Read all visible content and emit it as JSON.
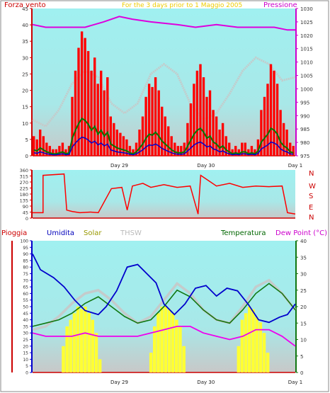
{
  "header": {
    "left_label": "Forza vento",
    "title": "For the 3 days prior to 1 Maggio 2005",
    "right_label": "Pressione"
  },
  "lower_header": {
    "pioggia": "Pioggia",
    "umidita": "Umidita",
    "solar": "Solar",
    "thsw": "THSW",
    "temperatura": "Temperatura",
    "dew_point": "Dew Point (°C)"
  },
  "colors": {
    "wind_gust": "#ff0000",
    "wind_avg": "#007700",
    "wind_low": "#0000cc",
    "pressure": "#dd00dd",
    "thsw": "#c8c8c8",
    "direction": "#ff0000",
    "humidity": "#0000cc",
    "temperature": "#117711",
    "dew_point": "#ee00ee",
    "solar": "#ffff33",
    "rain_axis": "#cc0000",
    "sky": "#a0f0f0",
    "ground": "#c8c8c8"
  },
  "chart_data": [
    {
      "type": "line",
      "name": "wind-pressure",
      "x_ticks": [
        "Day 29",
        "Day 30",
        "Day 1"
      ],
      "left_axis": {
        "ylim": [
          0,
          45
        ],
        "ticks": [
          0,
          5,
          10,
          15,
          20,
          25,
          30,
          35,
          40,
          45
        ]
      },
      "right_axis": {
        "ylim": [
          975,
          1030
        ],
        "ticks": [
          975,
          980,
          985,
          990,
          995,
          1000,
          1005,
          1010,
          1015,
          1020,
          1025,
          1030
        ]
      },
      "pressure": {
        "x": [
          0,
          0.05,
          0.1,
          0.2,
          0.27,
          0.33,
          0.38,
          0.45,
          0.55,
          0.62,
          0.7,
          0.78,
          0.85,
          0.92,
          0.97,
          1.0
        ],
        "y": [
          1024,
          1023,
          1023,
          1023,
          1025,
          1027,
          1026,
          1025,
          1024,
          1023,
          1024,
          1023,
          1023,
          1023,
          1022,
          1022
        ]
      },
      "thsw_left": {
        "x": [
          0,
          0.05,
          0.1,
          0.15,
          0.2,
          0.25,
          0.3,
          0.35,
          0.4,
          0.45,
          0.5,
          0.55,
          0.6,
          0.65,
          0.7,
          0.75,
          0.8,
          0.85,
          0.9,
          0.95,
          1.0
        ],
        "y": [
          11,
          9,
          14,
          22,
          26,
          24,
          16,
          13,
          16,
          25,
          28,
          25,
          16,
          11,
          13,
          19,
          26,
          30,
          28,
          23,
          24
        ]
      },
      "wind_gust_hourly": [
        6,
        5,
        8,
        6,
        4,
        3,
        2,
        2,
        3,
        4,
        2,
        3,
        18,
        26,
        33,
        38,
        36,
        32,
        26,
        30,
        22,
        26,
        20,
        24,
        12,
        10,
        8,
        7,
        6,
        5,
        3,
        2,
        4,
        8,
        12,
        18,
        22,
        21,
        24,
        20,
        15,
        12,
        9,
        6,
        4,
        3,
        3,
        4,
        10,
        16,
        22,
        26,
        28,
        24,
        18,
        20,
        14,
        12,
        8,
        10,
        6,
        4,
        2,
        3,
        2,
        4,
        4,
        2,
        3,
        2,
        5,
        14,
        18,
        22,
        28,
        26,
        22,
        14,
        10,
        8,
        4,
        3
      ]
    },
    {
      "type": "scatter",
      "name": "wind-direction",
      "left_axis": {
        "ylim": [
          0,
          360
        ],
        "ticks": [
          0,
          45,
          90,
          135,
          180,
          225,
          270,
          315,
          360
        ]
      },
      "right_labels": [
        "N",
        "W",
        "S",
        "E",
        "N"
      ],
      "direction": {
        "x": [
          0,
          0.04,
          0.04,
          0.12,
          0.13,
          0.15,
          0.18,
          0.22,
          0.25,
          0.3,
          0.34,
          0.36,
          0.38,
          0.42,
          0.45,
          0.5,
          0.55,
          0.6,
          0.63,
          0.64,
          0.7,
          0.75,
          0.8,
          0.85,
          0.9,
          0.95,
          0.97,
          1.0
        ],
        "y": [
          40,
          40,
          320,
          330,
          60,
          50,
          40,
          45,
          40,
          220,
          230,
          60,
          240,
          260,
          230,
          250,
          230,
          240,
          30,
          320,
          240,
          260,
          230,
          240,
          235,
          240,
          40,
          30
        ]
      }
    },
    {
      "type": "line",
      "name": "humidity-temperature",
      "x_ticks": [
        "Day 29",
        "Day 30",
        "Day 1"
      ],
      "left_axis": {
        "ylim": [
          0,
          100
        ],
        "ticks": [
          0,
          5,
          10,
          15,
          20,
          25,
          30,
          35,
          40,
          45,
          50,
          55,
          60,
          65,
          70,
          75,
          80,
          85,
          90,
          95,
          100
        ]
      },
      "right_axis": {
        "ylim": [
          0,
          40
        ],
        "ticks": [
          0,
          5,
          10,
          15,
          20,
          25,
          30,
          35,
          40
        ]
      },
      "humidity": {
        "x": [
          0,
          0.03,
          0.08,
          0.12,
          0.16,
          0.2,
          0.25,
          0.28,
          0.32,
          0.36,
          0.4,
          0.43,
          0.47,
          0.5,
          0.54,
          0.58,
          0.62,
          0.66,
          0.7,
          0.74,
          0.78,
          0.82,
          0.86,
          0.9,
          0.94,
          0.97,
          1.0
        ],
        "y": [
          90,
          78,
          72,
          65,
          55,
          47,
          44,
          50,
          62,
          80,
          82,
          76,
          68,
          52,
          44,
          52,
          64,
          66,
          58,
          64,
          62,
          52,
          40,
          38,
          42,
          44,
          52
        ]
      },
      "temperature": {
        "x": [
          0,
          0.05,
          0.1,
          0.15,
          0.2,
          0.25,
          0.3,
          0.35,
          0.4,
          0.45,
          0.5,
          0.55,
          0.6,
          0.65,
          0.7,
          0.75,
          0.8,
          0.85,
          0.9,
          0.95,
          1.0
        ],
        "y": [
          14,
          15,
          16,
          18,
          21,
          23,
          20,
          17,
          15,
          16,
          20,
          25,
          23,
          19,
          16,
          15,
          19,
          24,
          27,
          24,
          19
        ]
      },
      "dew_point": {
        "x": [
          0,
          0.05,
          0.1,
          0.15,
          0.2,
          0.25,
          0.3,
          0.35,
          0.4,
          0.45,
          0.5,
          0.55,
          0.6,
          0.65,
          0.7,
          0.75,
          0.8,
          0.85,
          0.9,
          0.95,
          1.0
        ],
        "y": [
          12,
          11,
          11,
          11,
          12,
          11,
          11,
          11,
          11,
          12,
          13,
          14,
          14,
          12,
          11,
          10,
          11,
          13,
          13,
          11,
          8
        ]
      },
      "thsw": {
        "x": [
          0,
          0.05,
          0.1,
          0.15,
          0.2,
          0.25,
          0.3,
          0.35,
          0.4,
          0.45,
          0.5,
          0.55,
          0.6,
          0.65,
          0.7,
          0.75,
          0.8,
          0.85,
          0.9,
          0.95,
          1.0
        ],
        "y": [
          13,
          14,
          17,
          21,
          24,
          25,
          22,
          18,
          15,
          17,
          22,
          27,
          24,
          19,
          16,
          15,
          20,
          26,
          28,
          24,
          19
        ]
      },
      "solar_fraction": [
        0,
        0,
        0,
        0,
        0,
        0,
        0,
        0,
        0.2,
        0.35,
        0.4,
        0.45,
        0.5,
        0.48,
        0.5,
        0.45,
        0.4,
        0.3,
        0.1,
        0,
        0,
        0,
        0,
        0,
        0,
        0,
        0,
        0,
        0,
        0,
        0,
        0,
        0.15,
        0.35,
        0.45,
        0.5,
        0.5,
        0.48,
        0.45,
        0.4,
        0.35,
        0.2,
        0,
        0,
        0,
        0,
        0,
        0,
        0,
        0,
        0,
        0,
        0,
        0,
        0,
        0,
        0.2,
        0.4,
        0.45,
        0.5,
        0.48,
        0.42,
        0.38,
        0.3,
        0.15,
        0,
        0,
        0,
        0,
        0,
        0,
        0
      ]
    }
  ]
}
